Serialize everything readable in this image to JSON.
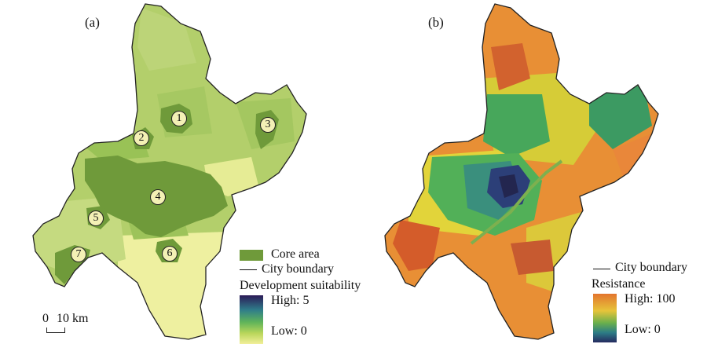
{
  "panels": {
    "a": {
      "label": "(a)",
      "legend": {
        "core_area": "Core area",
        "city_boundary": "City boundary",
        "ramp_title": "Development suitability",
        "high": "High: 5",
        "low": "Low: 0"
      },
      "scale": {
        "zero": "0",
        "ten": "10 km"
      },
      "core_areas": [
        "1",
        "2",
        "3",
        "4",
        "5",
        "6",
        "7"
      ]
    },
    "b": {
      "label": "(b)",
      "legend": {
        "city_boundary": "City boundary",
        "ramp_title": "Resistance",
        "high": "High: 100",
        "low": "Low: 0"
      }
    }
  },
  "colors": {
    "core_area": "#6f9a3a",
    "suitability_low": "#f2ef9a",
    "suitability_high": "#2b1a57",
    "resistance_high": "#e3752e",
    "resistance_low": "#252a5f"
  }
}
